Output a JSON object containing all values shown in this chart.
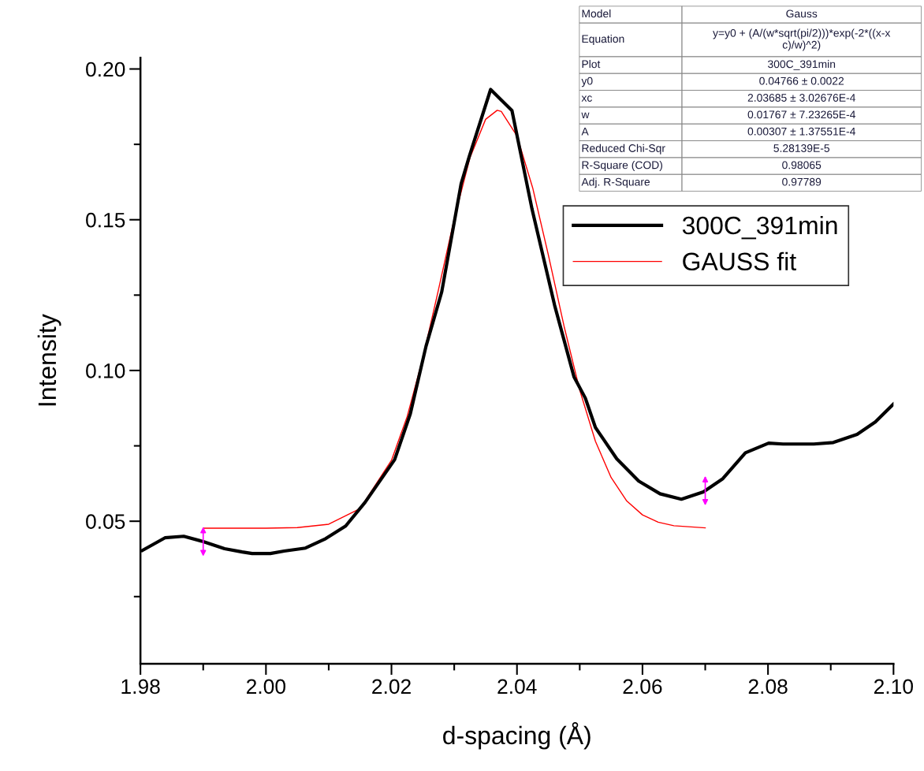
{
  "chart_data": {
    "type": "line",
    "xlabel": "d-spacing (Å)",
    "ylabel": "Intensity",
    "xlim": [
      1.98,
      2.1
    ],
    "ylim": [
      0.0027,
      0.2037
    ],
    "xticks": [
      {
        "value": 1.98,
        "label": "1.98"
      },
      {
        "value": 1.99,
        "label": null
      },
      {
        "value": 2.0,
        "label": "2.00"
      },
      {
        "value": 2.01,
        "label": null
      },
      {
        "value": 2.02,
        "label": "2.02"
      },
      {
        "value": 2.03,
        "label": null
      },
      {
        "value": 2.04,
        "label": "2.04"
      },
      {
        "value": 2.05,
        "label": null
      },
      {
        "value": 2.06,
        "label": "2.06"
      },
      {
        "value": 2.07,
        "label": null
      },
      {
        "value": 2.08,
        "label": "2.08"
      },
      {
        "value": 2.09,
        "label": null
      },
      {
        "value": 2.1,
        "label": "2.10"
      }
    ],
    "yticks": [
      {
        "value": 0.025,
        "label": null
      },
      {
        "value": 0.05,
        "label": "0.05"
      },
      {
        "value": 0.075,
        "label": null
      },
      {
        "value": 0.1,
        "label": "0.10"
      },
      {
        "value": 0.125,
        "label": null
      },
      {
        "value": 0.15,
        "label": "0.15"
      },
      {
        "value": 0.175,
        "label": null
      },
      {
        "value": 0.2,
        "label": "0.20"
      }
    ],
    "grid": false,
    "legend": "right",
    "marker": "none",
    "line_style": "solid",
    "series": [
      {
        "name": "300C_391min",
        "color": "#000000",
        "x": [
          1.9803,
          1.9839,
          1.9869,
          1.9901,
          1.9934,
          1.9962,
          1.9978,
          2.0007,
          2.0029,
          2.0063,
          2.0095,
          2.0127,
          2.0158,
          2.0205,
          2.023,
          2.0255,
          2.028,
          2.0311,
          2.0324,
          2.0358,
          2.0392,
          2.0424,
          2.046,
          2.0491,
          2.0509,
          2.0525,
          2.0559,
          2.0594,
          2.0628,
          2.0662,
          2.0697,
          2.0728,
          2.0764,
          2.0801,
          2.0824,
          2.0873,
          2.0904,
          2.0942,
          2.0971,
          2.1
        ],
        "values": [
          0.0403,
          0.0445,
          0.045,
          0.0432,
          0.0409,
          0.0398,
          0.0393,
          0.0393,
          0.0401,
          0.0411,
          0.0442,
          0.0484,
          0.0563,
          0.0704,
          0.0856,
          0.108,
          0.126,
          0.1619,
          0.171,
          0.1932,
          0.1862,
          0.1535,
          0.1216,
          0.0978,
          0.0908,
          0.0811,
          0.0707,
          0.0633,
          0.0591,
          0.0573,
          0.0597,
          0.0641,
          0.0727,
          0.0759,
          0.0756,
          0.0756,
          0.0761,
          0.0788,
          0.0829,
          0.0889
        ]
      },
      {
        "name": "GAUSS fit",
        "color": "#ff0000",
        "x": [
          1.99,
          2.0,
          2.005,
          2.01,
          2.015,
          2.02,
          2.0225,
          2.025,
          2.0275,
          2.03,
          2.0325,
          2.035,
          2.03685,
          2.0375,
          2.04,
          2.0425,
          2.045,
          2.0475,
          2.05,
          2.0525,
          2.055,
          2.0575,
          2.06,
          2.0625,
          2.065,
          2.07
        ],
        "values": [
          0.0477,
          0.0477,
          0.0479,
          0.049,
          0.0542,
          0.0702,
          0.0847,
          0.1041,
          0.1269,
          0.1503,
          0.1705,
          0.1833,
          0.1863,
          0.1859,
          0.1778,
          0.1606,
          0.1383,
          0.1147,
          0.0935,
          0.0765,
          0.0645,
          0.0567,
          0.0521,
          0.0497,
          0.0485,
          0.0478
        ]
      }
    ],
    "annotations": [
      "Model",
      "Gauss",
      "Equation",
      "y=y0 + (A/(w*sqrt(pi/2)))*exp(-2*((x-x\nc)/w)^2)",
      "Plot",
      "300C_391min",
      "y0",
      "0.04766 ± 0.0022",
      "xc",
      "2.03685 ± 3.02676E-4",
      "w",
      "0.01767 ± 7.23265E-4",
      "A",
      "0.00307 ± 1.37551E-4",
      "Reduced Chi-Sqr",
      "5.28139E-5",
      "R-Square (COD)",
      "0.98065",
      "Adj. R-Square",
      "0.97789"
    ]
  }
}
